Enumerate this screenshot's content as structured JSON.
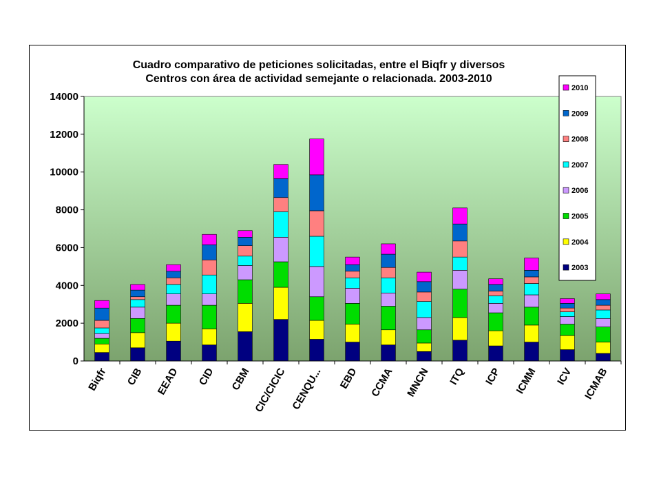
{
  "chart_data": {
    "type": "bar",
    "stacked": true,
    "title_lines": [
      "Cuadro comparativo de peticiones solicitadas, entre el Biqfr y diversos",
      "Centros con área de actividad semejante o relacionada. 2003-2010"
    ],
    "categories": [
      "Biqfr",
      "CIB",
      "EEAD",
      "CID",
      "CBM",
      "CIC/CICIC",
      "CENQU...",
      "EBD",
      "CCMA",
      "MNCN",
      "ITQ",
      "ICP",
      "ICMM",
      "ICV",
      "ICMAB"
    ],
    "ylim": [
      0,
      14000
    ],
    "yticks": [
      0,
      2000,
      4000,
      6000,
      8000,
      10000,
      12000,
      14000
    ],
    "grid": false,
    "plot_background": "green-gradient",
    "legend_position": "top-right",
    "series": [
      {
        "name": "2003",
        "color": "#000080",
        "values": [
          450,
          700,
          1050,
          850,
          1550,
          2200,
          1150,
          1000,
          850,
          500,
          1100,
          800,
          1000,
          600,
          400
        ]
      },
      {
        "name": "2004",
        "color": "#FFFF00",
        "values": [
          450,
          800,
          950,
          850,
          1500,
          1700,
          1000,
          950,
          800,
          450,
          1200,
          800,
          900,
          750,
          600
        ]
      },
      {
        "name": "2005",
        "color": "#00DD00",
        "values": [
          300,
          750,
          950,
          1250,
          1250,
          1350,
          1250,
          1100,
          1250,
          700,
          1500,
          950,
          950,
          600,
          800
        ]
      },
      {
        "name": "2006",
        "color": "#CC99FF",
        "values": [
          250,
          600,
          600,
          600,
          750,
          1300,
          1600,
          800,
          700,
          650,
          1000,
          500,
          650,
          400,
          450
        ]
      },
      {
        "name": "2007",
        "color": "#00FFFF",
        "values": [
          300,
          400,
          500,
          1000,
          500,
          1350,
          1600,
          550,
          800,
          850,
          700,
          400,
          600,
          250,
          450
        ]
      },
      {
        "name": "2008",
        "color": "#FF8080",
        "values": [
          400,
          150,
          350,
          800,
          550,
          750,
          1350,
          350,
          550,
          500,
          850,
          250,
          350,
          200,
          250
        ]
      },
      {
        "name": "2009",
        "color": "#0066CC",
        "values": [
          650,
          350,
          350,
          800,
          450,
          1000,
          1900,
          350,
          700,
          550,
          900,
          350,
          350,
          250,
          300
        ]
      },
      {
        "name": "2010",
        "color": "#FF00FF",
        "values": [
          400,
          300,
          350,
          550,
          350,
          750,
          1900,
          400,
          550,
          500,
          850,
          300,
          650,
          250,
          300
        ]
      }
    ]
  }
}
